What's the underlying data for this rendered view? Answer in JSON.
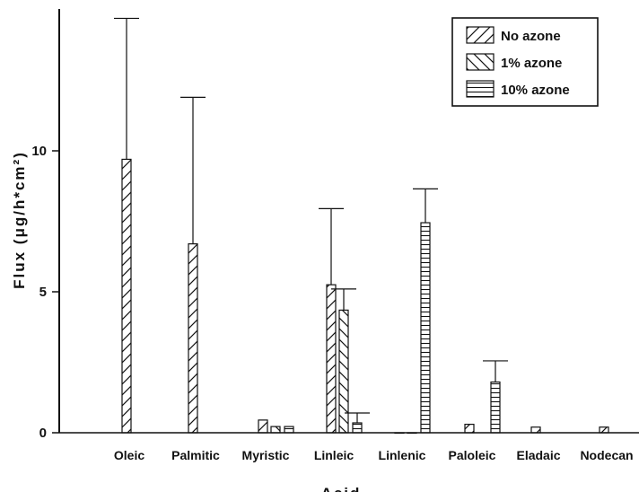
{
  "chart_data": {
    "type": "bar",
    "ylabel": "Flux (μg/h*cm²)",
    "xlabel": "Acid",
    "categories": [
      "Oleic",
      "Palmitic",
      "Myristic",
      "Linleic",
      "Linlenic",
      "Paloleic",
      "Eladaic",
      "Nodecan"
    ],
    "ylim": [
      0,
      14.8
    ],
    "yticks": [
      "0",
      "5",
      "10"
    ],
    "grid": false,
    "legend_position": "top-right",
    "series": [
      {
        "name": "No azone",
        "pattern": "diagonal-forward",
        "values": [
          9.7,
          6.7,
          0.45,
          5.25,
          0.0,
          0.3,
          0.2,
          0.2
        ],
        "errors": [
          5.0,
          5.2,
          null,
          2.7,
          null,
          null,
          null,
          null
        ]
      },
      {
        "name": "1% azone",
        "pattern": "diagonal-backward",
        "values": [
          null,
          null,
          0.22,
          4.35,
          0.0,
          null,
          null,
          null
        ],
        "errors": [
          null,
          null,
          null,
          0.75,
          null,
          null,
          null,
          null
        ]
      },
      {
        "name": "10% azone",
        "pattern": "horizontal",
        "values": [
          null,
          null,
          0.22,
          0.35,
          7.45,
          1.8,
          null,
          null
        ],
        "errors": [
          null,
          null,
          null,
          0.35,
          1.2,
          0.75,
          null,
          null
        ]
      }
    ]
  }
}
